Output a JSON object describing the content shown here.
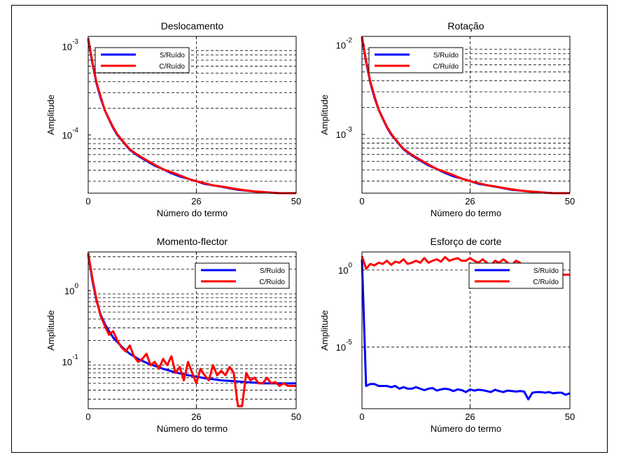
{
  "figure": {
    "xlabel": "Número do termo",
    "ylabel": "Amplitude"
  },
  "chart_data": [
    {
      "type": "line",
      "title": "Deslocamento",
      "xlabel": "Número do termo",
      "ylabel": "Amplitude",
      "yscale": "log",
      "xlim": [
        0,
        50
      ],
      "ylim": [
        2.2e-05,
        0.0013
      ],
      "x_ticks": [
        0,
        26,
        50
      ],
      "y_ticks": [
        {
          "value": 0.001,
          "base": "10",
          "exp": "-3"
        },
        {
          "value": 0.0001,
          "base": "10",
          "exp": "-4"
        }
      ],
      "grid_y": [
        0.0009,
        0.0008,
        0.0007,
        0.0006,
        0.0005,
        0.0004,
        0.0003,
        0.0002,
        9e-05,
        8e-05,
        7e-05,
        6e-05,
        5e-05,
        4e-05,
        3e-05
      ],
      "grid_x": [
        26
      ],
      "legend": "top-left",
      "series": [
        {
          "name": "S/Ruído",
          "color": "#0000ff",
          "x": [
            0,
            1,
            2,
            3,
            4,
            5,
            6,
            7,
            8,
            9,
            10,
            12,
            14,
            16,
            18,
            20,
            22,
            24,
            26,
            28,
            30,
            32,
            34,
            36,
            38,
            40,
            42,
            44,
            46,
            48,
            50
          ],
          "y": [
            0.0012,
            0.00065,
            0.00038,
            0.00026,
            0.00019,
            0.00015,
            0.00012,
            0.0001,
            8.8e-05,
            7.7e-05,
            6.8e-05,
            5.8e-05,
            5.1e-05,
            4.5e-05,
            4.1e-05,
            3.7e-05,
            3.4e-05,
            3.2e-05,
            3e-05,
            2.8e-05,
            2.7e-05,
            2.6e-05,
            2.5e-05,
            2.4e-05,
            2.35e-05,
            2.3e-05,
            2.26e-05,
            2.23e-05,
            2.2e-05,
            2.2e-05,
            2.2e-05
          ]
        },
        {
          "name": "C/Ruído",
          "color": "#ff0000",
          "x": [
            0,
            1,
            2,
            3,
            4,
            5,
            6,
            7,
            8,
            9,
            10,
            12,
            14,
            16,
            18,
            20,
            22,
            24,
            26,
            28,
            30,
            32,
            34,
            36,
            38,
            40,
            42,
            44,
            46,
            48,
            50
          ],
          "y": [
            0.00125,
            0.00067,
            0.00039,
            0.00027,
            0.00019,
            0.000152,
            0.000122,
            0.000102,
            8.9e-05,
            7.8e-05,
            6.9e-05,
            5.9e-05,
            5.2e-05,
            4.6e-05,
            4.1e-05,
            3.8e-05,
            3.5e-05,
            3.2e-05,
            3e-05,
            2.85e-05,
            2.7e-05,
            2.62e-05,
            2.52e-05,
            2.43e-05,
            2.36e-05,
            2.3e-05,
            2.27e-05,
            2.23e-05,
            2.2e-05,
            2.2e-05,
            2.2e-05
          ]
        }
      ]
    },
    {
      "type": "line",
      "title": "Rotação",
      "xlabel": "Número do termo",
      "ylabel": "Amplitude",
      "yscale": "log",
      "xlim": [
        0,
        50
      ],
      "ylim": [
        0.00022,
        0.0125
      ],
      "x_ticks": [
        0,
        26,
        50
      ],
      "y_ticks": [
        {
          "value": 0.01,
          "base": "10",
          "exp": "-2"
        },
        {
          "value": 0.001,
          "base": "10",
          "exp": "-3"
        }
      ],
      "grid_y": [
        0.009,
        0.008,
        0.007,
        0.006,
        0.005,
        0.004,
        0.003,
        0.002,
        0.0009,
        0.0008,
        0.0007,
        0.0006,
        0.0005,
        0.0004,
        0.0003
      ],
      "grid_x": [
        26
      ],
      "legend": "top-left",
      "series": [
        {
          "name": "S/Ruído",
          "color": "#0000ff",
          "x": [
            0,
            1,
            2,
            3,
            4,
            5,
            6,
            7,
            8,
            9,
            10,
            12,
            14,
            16,
            18,
            20,
            22,
            24,
            26,
            28,
            30,
            32,
            34,
            36,
            38,
            40,
            42,
            44,
            46,
            48,
            50
          ],
          "y": [
            0.012,
            0.0065,
            0.0038,
            0.0026,
            0.0019,
            0.0015,
            0.0012,
            0.001,
            0.00088,
            0.00077,
            0.00068,
            0.00058,
            0.00051,
            0.00045,
            0.00041,
            0.00037,
            0.00034,
            0.00032,
            0.0003,
            0.00028,
            0.00027,
            0.00026,
            0.00025,
            0.00024,
            0.000235,
            0.00023,
            0.000226,
            0.000223,
            0.00022,
            0.00022,
            0.00022
          ]
        },
        {
          "name": "C/Ruído",
          "color": "#ff0000",
          "x": [
            0,
            1,
            2,
            3,
            4,
            5,
            6,
            7,
            8,
            9,
            10,
            12,
            14,
            16,
            18,
            20,
            22,
            24,
            26,
            28,
            30,
            32,
            34,
            36,
            38,
            40,
            42,
            44,
            46,
            48,
            50
          ],
          "y": [
            0.0125,
            0.0067,
            0.0039,
            0.0027,
            0.0019,
            0.00152,
            0.00122,
            0.00102,
            0.00089,
            0.00078,
            0.00069,
            0.00059,
            0.00052,
            0.00046,
            0.00041,
            0.00038,
            0.00035,
            0.00032,
            0.0003,
            0.000285,
            0.00027,
            0.000262,
            0.000252,
            0.000243,
            0.000236,
            0.00023,
            0.000227,
            0.000223,
            0.00022,
            0.00022,
            0.00022
          ]
        }
      ]
    },
    {
      "type": "line",
      "title": "Momento-flector",
      "xlabel": "Número do termo",
      "ylabel": "Amplitude",
      "yscale": "log",
      "xlim": [
        0,
        50
      ],
      "ylim": [
        0.022,
        3.5
      ],
      "x_ticks": [
        0,
        26,
        50
      ],
      "y_ticks": [
        {
          "value": 1,
          "base": "10",
          "exp": "0"
        },
        {
          "value": 0.1,
          "base": "10",
          "exp": "-1"
        }
      ],
      "grid_y": [
        3,
        2,
        0.9,
        0.8,
        0.7,
        0.6,
        0.5,
        0.4,
        0.3,
        0.2,
        0.09,
        0.08,
        0.07,
        0.06,
        0.05,
        0.04,
        0.03
      ],
      "grid_x": [
        26
      ],
      "legend": "top-right",
      "series": [
        {
          "name": "S/Ruído",
          "color": "#0000ff",
          "x": [
            0,
            1,
            2,
            3,
            4,
            5,
            6,
            7,
            8,
            9,
            10,
            12,
            14,
            16,
            18,
            20,
            22,
            24,
            26,
            28,
            30,
            32,
            34,
            36,
            38,
            40,
            42,
            44,
            46,
            48,
            50
          ],
          "y": [
            3.2,
            1.4,
            0.72,
            0.46,
            0.34,
            0.27,
            0.22,
            0.19,
            0.165,
            0.145,
            0.13,
            0.11,
            0.097,
            0.088,
            0.08,
            0.074,
            0.069,
            0.065,
            0.062,
            0.059,
            0.057,
            0.055,
            0.054,
            0.053,
            0.052,
            0.051,
            0.05,
            0.05,
            0.05,
            0.05,
            0.05
          ]
        },
        {
          "name": "C/Ruído",
          "color": "#ff0000",
          "x": [
            0,
            1,
            2,
            3,
            4,
            5,
            6,
            7,
            8,
            9,
            10,
            11,
            12,
            13,
            14,
            15,
            16,
            17,
            18,
            19,
            20,
            21,
            22,
            23,
            24,
            25,
            26,
            27,
            28,
            29,
            30,
            31,
            32,
            33,
            34,
            35,
            36,
            37,
            38,
            39,
            40,
            41,
            42,
            43,
            44,
            45,
            46,
            47,
            48,
            49,
            50
          ],
          "y": [
            3.4,
            1.5,
            0.75,
            0.44,
            0.32,
            0.24,
            0.27,
            0.2,
            0.16,
            0.14,
            0.17,
            0.12,
            0.1,
            0.11,
            0.13,
            0.09,
            0.1,
            0.08,
            0.11,
            0.09,
            0.12,
            0.07,
            0.085,
            0.055,
            0.1,
            0.07,
            0.05,
            0.08,
            0.065,
            0.055,
            0.09,
            0.065,
            0.075,
            0.065,
            0.085,
            0.07,
            0.024,
            0.024,
            0.07,
            0.055,
            0.06,
            0.05,
            0.05,
            0.06,
            0.05,
            0.052,
            0.046,
            0.05,
            0.046,
            0.046,
            0.046
          ]
        }
      ]
    },
    {
      "type": "line",
      "title": "Esforço de corte",
      "xlabel": "Número do termo",
      "ylabel": "Amplitude",
      "yscale": "log",
      "xlim": [
        0,
        50
      ],
      "ylim": [
        1e-09,
        15
      ],
      "x_ticks": [
        0,
        26,
        50
      ],
      "y_ticks": [
        {
          "value": 1,
          "base": "10",
          "exp": "0"
        },
        {
          "value": 1e-05,
          "base": "10",
          "exp": "-5"
        }
      ],
      "grid_y": [
        1,
        1e-05
      ],
      "grid_x": [
        26
      ],
      "legend": "top-right",
      "series": [
        {
          "name": "S/Ruído",
          "color": "#0000ff",
          "x": [
            0,
            1,
            2,
            3,
            4,
            5,
            6,
            7,
            8,
            9,
            10,
            11,
            12,
            13,
            14,
            15,
            16,
            17,
            18,
            19,
            20,
            21,
            22,
            23,
            24,
            25,
            26,
            27,
            28,
            29,
            30,
            31,
            32,
            33,
            34,
            35,
            36,
            37,
            38,
            39,
            40,
            41,
            42,
            43,
            44,
            45,
            46,
            47,
            48,
            49,
            50
          ],
          "y": [
            5,
            3e-08,
            4e-08,
            4e-08,
            3e-08,
            3e-08,
            3e-08,
            2.5e-08,
            3e-08,
            2e-08,
            2.5e-08,
            2e-08,
            2e-08,
            2.5e-08,
            2e-08,
            1.6e-08,
            2e-08,
            2.2e-08,
            1.5e-08,
            1.8e-08,
            2e-08,
            1.8e-08,
            1.4e-08,
            1.8e-08,
            1.6e-08,
            1.2e-08,
            1.8e-08,
            1.5e-08,
            1.7e-08,
            1.6e-08,
            1.4e-08,
            1.2e-08,
            1.7e-08,
            1.4e-08,
            1.2e-08,
            1.5e-08,
            1.4e-08,
            1.3e-08,
            1.4e-08,
            1.3e-08,
            4e-09,
            1.1e-08,
            1.2e-08,
            1.2e-08,
            1.1e-08,
            1.2e-08,
            1e-08,
            1.1e-08,
            1.1e-08,
            8e-09,
            1e-08
          ]
        },
        {
          "name": "C/Ruído",
          "color": "#ff0000",
          "x": [
            0,
            1,
            2,
            3,
            4,
            5,
            6,
            7,
            8,
            9,
            10,
            11,
            12,
            13,
            14,
            15,
            16,
            17,
            18,
            19,
            20,
            21,
            22,
            23,
            24,
            25,
            26,
            27,
            28,
            29,
            30,
            31,
            32,
            33,
            34,
            35,
            36,
            37,
            38,
            39,
            40,
            41,
            42,
            43,
            44,
            45,
            46,
            47,
            48,
            49,
            50
          ],
          "y": [
            8,
            1.2,
            2.5,
            2,
            3,
            2.5,
            4,
            2.2,
            3.5,
            3,
            5,
            2.5,
            3,
            4,
            3,
            6,
            3,
            4,
            5,
            3.5,
            7,
            4,
            5,
            6,
            4,
            4,
            6,
            4,
            3,
            5,
            3,
            2,
            4,
            3,
            5,
            3,
            2,
            4,
            3,
            0.5,
            0.5,
            0.5,
            0.5,
            0.5,
            0.5,
            0.5,
            0.5,
            0.5,
            0.5,
            0.5,
            0.5
          ]
        }
      ]
    }
  ]
}
